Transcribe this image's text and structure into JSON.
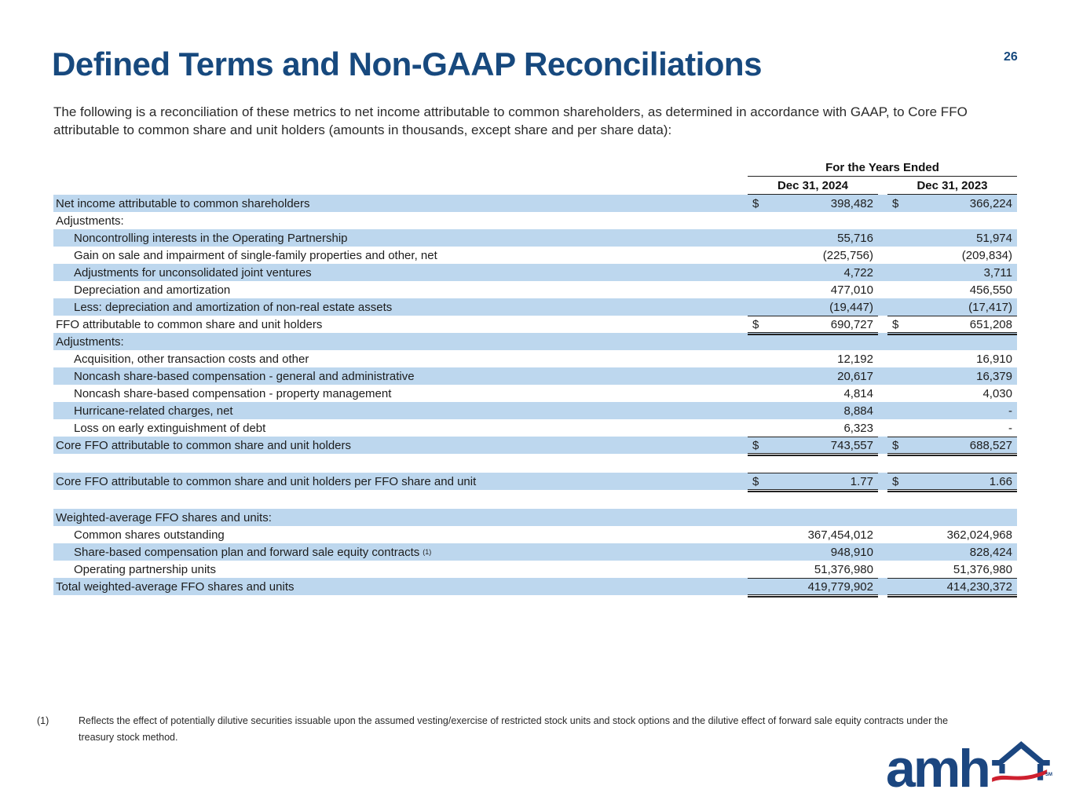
{
  "page": {
    "title": "Defined Terms and Non-GAAP Reconciliations",
    "page_number": "26",
    "intro": "The following is a reconciliation of these metrics to net income attributable to common shareholders, as determined in accordance with GAAP, to Core FFO attributable to common share and unit holders (amounts in thousands, except share and per share data):"
  },
  "colors": {
    "title_navy": "#17497E",
    "row_shade_blue": "#BDD7EE",
    "logo_navy": "#1B4680",
    "logo_red": "#CE202F",
    "rule_color": "#222222"
  },
  "table": {
    "header": {
      "group": "For the Years Ended",
      "col1": "Dec 31, 2024",
      "col2": "Dec 31, 2023"
    },
    "rows": [
      {
        "label": "Net income attributable to common shareholders",
        "shaded": true,
        "d1": "$",
        "v1": "398,482",
        "d2": "$",
        "v2": "366,224"
      },
      {
        "label": "Adjustments:"
      },
      {
        "label": "Noncontrolling interests in the Operating Partnership",
        "indent": true,
        "shaded": true,
        "v1": "55,716",
        "v2": "51,974"
      },
      {
        "label": "Gain on sale and impairment of single-family properties and other, net",
        "indent": true,
        "v1": "(225,756)",
        "v2": "(209,834)"
      },
      {
        "label": "Adjustments for unconsolidated joint ventures",
        "indent": true,
        "shaded": true,
        "v1": "4,722",
        "v2": "3,711"
      },
      {
        "label": "Depreciation and amortization",
        "indent": true,
        "v1": "477,010",
        "v2": "456,550"
      },
      {
        "label": "Less: depreciation and amortization of non-real estate assets",
        "indent": true,
        "shaded": true,
        "v1": "(19,447)",
        "v2": "(17,417)"
      },
      {
        "label": "FFO attributable to common share and unit holders",
        "d1": "$",
        "v1": "690,727",
        "d2": "$",
        "v2": "651,208",
        "top": true,
        "bottom": "double"
      },
      {
        "label": "Adjustments:",
        "shaded": true
      },
      {
        "label": "Acquisition, other transaction costs and other",
        "indent": true,
        "v1": "12,192",
        "v2": "16,910"
      },
      {
        "label": "Noncash share-based compensation - general and administrative",
        "indent": true,
        "shaded": true,
        "v1": "20,617",
        "v2": "16,379"
      },
      {
        "label": "Noncash share-based compensation - property management",
        "indent": true,
        "v1": "4,814",
        "v2": "4,030"
      },
      {
        "label": "Hurricane-related charges, net",
        "indent": true,
        "shaded": true,
        "v1": "8,884",
        "v2": "-"
      },
      {
        "label": "Loss on early extinguishment of debt",
        "indent": true,
        "v1": "6,323",
        "v2": "-"
      },
      {
        "label": "Core FFO attributable to common share and unit holders",
        "shaded": true,
        "d1": "$",
        "v1": "743,557",
        "d2": "$",
        "v2": "688,527",
        "top": true,
        "bottom": "double"
      },
      {
        "spacer": true
      },
      {
        "label": "Core FFO attributable to common share and unit holders per FFO share and unit",
        "shaded": true,
        "d1": "$",
        "v1": "1.77",
        "d2": "$",
        "v2": "1.66",
        "top": true,
        "bottom": "double"
      },
      {
        "spacer": true
      },
      {
        "label": "Weighted-average FFO shares and units:",
        "shaded": true
      },
      {
        "label": "Common shares outstanding",
        "indent": true,
        "v1": "367,454,012",
        "v2": "362,024,968"
      },
      {
        "label": "Share-based compensation plan and forward sale equity contracts",
        "sup": "(1)",
        "indent": true,
        "shaded": true,
        "v1": "948,910",
        "v2": "828,424"
      },
      {
        "label": "Operating partnership units",
        "indent": true,
        "v1": "51,376,980",
        "v2": "51,376,980"
      },
      {
        "label": "Total weighted-average FFO shares and units",
        "shaded": true,
        "v1": "419,779,902",
        "v2": "414,230,372",
        "top": true,
        "bottom": "double"
      }
    ]
  },
  "footnote": {
    "marker": "(1)",
    "text": "Reflects the effect of potentially dilutive securities issuable upon the assumed vesting/exercise of restricted stock units and stock options and the dilutive effect of forward sale equity contracts under the treasury stock method."
  },
  "logo": {
    "text": "amh",
    "sm": "SM"
  }
}
